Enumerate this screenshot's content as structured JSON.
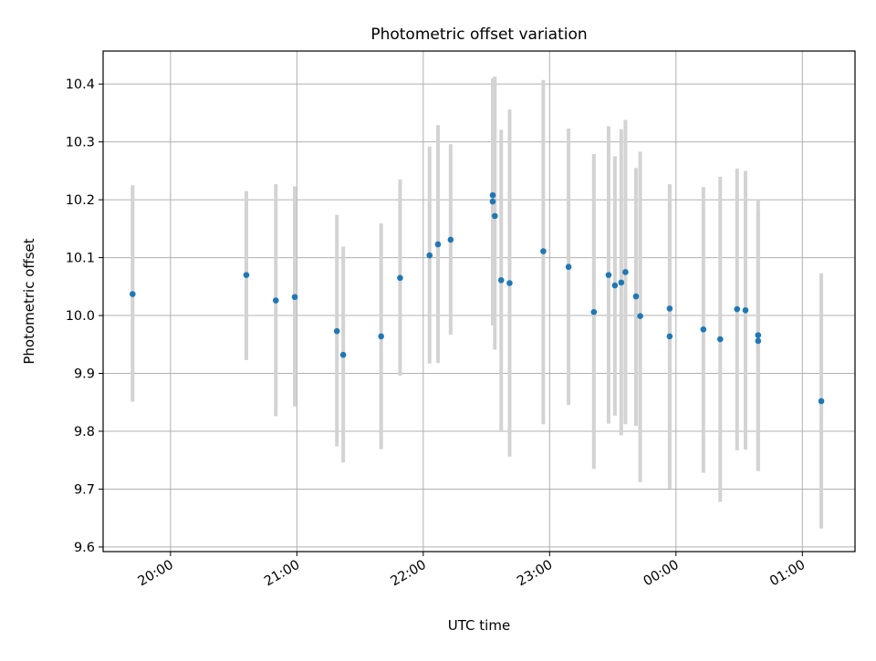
{
  "chart_data": {
    "type": "scatter",
    "title": "Photometric offset variation",
    "xlabel": "UTC time",
    "ylabel": "Photometric offset",
    "x_axis": {
      "type": "time",
      "date_start": "2021-01-01",
      "range": [
        "2021-01-01T19:28",
        "2021-01-02T01:25"
      ],
      "ticks": [
        {
          "time": "2021-01-01T20:00",
          "label": "20:00"
        },
        {
          "time": "2021-01-01T21:00",
          "label": "21:00"
        },
        {
          "time": "2021-01-01T22:00",
          "label": "22:00"
        },
        {
          "time": "2021-01-01T23:00",
          "label": "23:00"
        },
        {
          "time": "2021-01-02T00:00",
          "label": "00:00"
        },
        {
          "time": "2021-01-02T01:00",
          "label": "01:00"
        }
      ]
    },
    "y_axis": {
      "range": [
        9.592,
        10.457
      ],
      "ticks": [
        "9.6",
        "9.7",
        "9.8",
        "9.9",
        "10.0",
        "10.1",
        "10.2",
        "10.3",
        "10.4"
      ]
    },
    "grid": true,
    "legend": "none",
    "colors": {
      "points": "#1f77b4",
      "errorbars": "#d3d3d3",
      "grid": "#b0b0b0",
      "axes": "#000000"
    },
    "series": [
      {
        "points": [
          {
            "x": "2021-01-01T19:42",
            "y": 10.037,
            "lo": 9.851,
            "hi": 10.225
          },
          {
            "x": "2021-01-01T20:36",
            "y": 10.07,
            "lo": 9.923,
            "hi": 10.215
          },
          {
            "x": "2021-01-01T20:50",
            "y": 10.026,
            "lo": 9.826,
            "hi": 10.227
          },
          {
            "x": "2021-01-01T20:59",
            "y": 10.032,
            "lo": 9.843,
            "hi": 10.223
          },
          {
            "x": "2021-01-01T21:19",
            "y": 9.973,
            "lo": 9.774,
            "hi": 10.174
          },
          {
            "x": "2021-01-01T21:22",
            "y": 9.932,
            "lo": 9.746,
            "hi": 10.119
          },
          {
            "x": "2021-01-01T21:40",
            "y": 9.964,
            "lo": 9.769,
            "hi": 10.159
          },
          {
            "x": "2021-01-01T21:49",
            "y": 10.065,
            "lo": 9.896,
            "hi": 10.235
          },
          {
            "x": "2021-01-01T22:03",
            "y": 10.104,
            "lo": 9.917,
            "hi": 10.292
          },
          {
            "x": "2021-01-01T22:07",
            "y": 10.123,
            "lo": 9.918,
            "hi": 10.329
          },
          {
            "x": "2021-01-01T22:13",
            "y": 10.131,
            "lo": 9.967,
            "hi": 10.296
          },
          {
            "x": "2021-01-01T22:33",
            "y": 10.208,
            "lo": 10.01,
            "hi": 10.406
          },
          {
            "x": "2021-01-01T22:33",
            "y": 10.197,
            "lo": 9.983,
            "hi": 10.41
          },
          {
            "x": "2021-01-01T22:34",
            "y": 10.172,
            "lo": 9.941,
            "hi": 10.413
          },
          {
            "x": "2021-01-01T22:37",
            "y": 10.061,
            "lo": 9.8,
            "hi": 10.321
          },
          {
            "x": "2021-01-01T22:41",
            "y": 10.056,
            "lo": 9.756,
            "hi": 10.356
          },
          {
            "x": "2021-01-01T22:57",
            "y": 10.111,
            "lo": 9.812,
            "hi": 10.407
          },
          {
            "x": "2021-01-01T23:09",
            "y": 10.084,
            "lo": 9.845,
            "hi": 10.323
          },
          {
            "x": "2021-01-01T23:21",
            "y": 10.006,
            "lo": 9.735,
            "hi": 10.279
          },
          {
            "x": "2021-01-01T23:28",
            "y": 10.07,
            "lo": 9.813,
            "hi": 10.327
          },
          {
            "x": "2021-01-01T23:31",
            "y": 10.052,
            "lo": 9.827,
            "hi": 10.275
          },
          {
            "x": "2021-01-01T23:34",
            "y": 10.057,
            "lo": 9.793,
            "hi": 10.322
          },
          {
            "x": "2021-01-01T23:36",
            "y": 10.075,
            "lo": 9.812,
            "hi": 10.338
          },
          {
            "x": "2021-01-01T23:41",
            "y": 10.033,
            "lo": 9.809,
            "hi": 10.255
          },
          {
            "x": "2021-01-01T23:43",
            "y": 9.999,
            "lo": 9.712,
            "hi": 10.283
          },
          {
            "x": "2021-01-01T23:57",
            "y": 10.012,
            "lo": 9.799,
            "hi": 10.224
          },
          {
            "x": "2021-01-01T23:57",
            "y": 9.964,
            "lo": 9.701,
            "hi": 10.227
          },
          {
            "x": "2021-01-02T00:13",
            "y": 9.976,
            "lo": 9.728,
            "hi": 10.222
          },
          {
            "x": "2021-01-02T00:21",
            "y": 9.959,
            "lo": 9.678,
            "hi": 10.24
          },
          {
            "x": "2021-01-02T00:29",
            "y": 10.011,
            "lo": 9.767,
            "hi": 10.254
          },
          {
            "x": "2021-01-02T00:33",
            "y": 10.009,
            "lo": 9.768,
            "hi": 10.25
          },
          {
            "x": "2021-01-02T00:39",
            "y": 9.956,
            "lo": 9.731,
            "hi": 10.182
          },
          {
            "x": "2021-01-02T00:39",
            "y": 9.966,
            "lo": 9.733,
            "hi": 10.2
          },
          {
            "x": "2021-01-02T01:09",
            "y": 9.852,
            "lo": 9.632,
            "hi": 10.073
          }
        ]
      }
    ]
  }
}
